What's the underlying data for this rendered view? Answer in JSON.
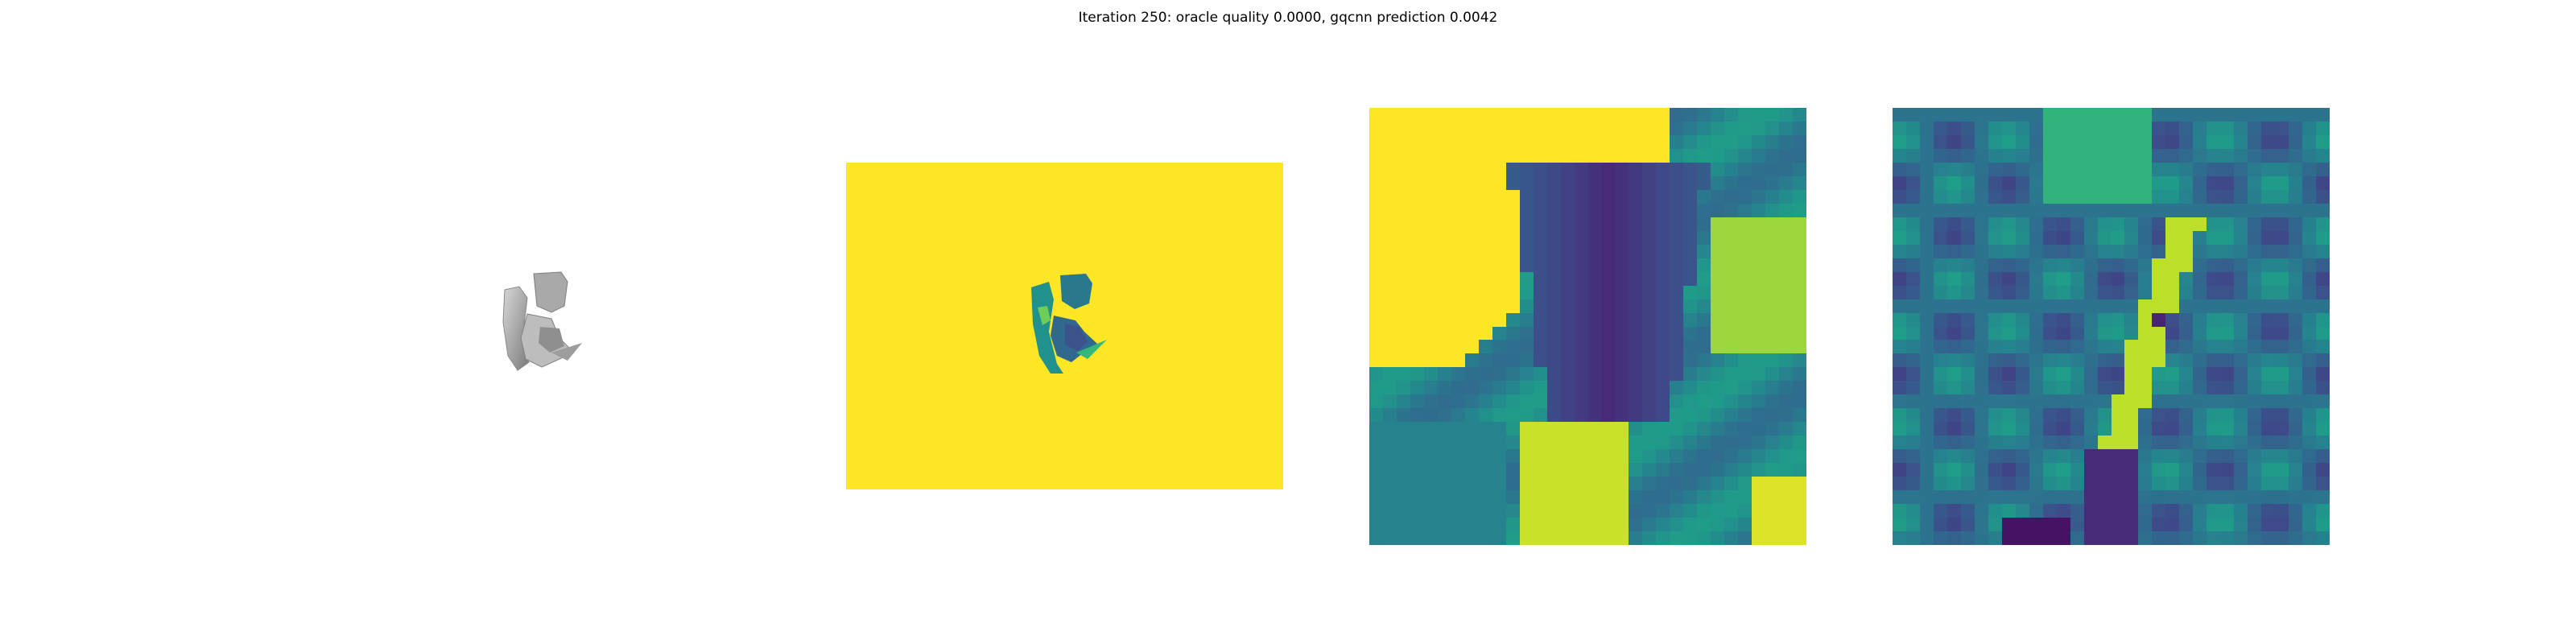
{
  "figure": {
    "title": "Iteration 250: oracle quality 0.0000, gqcnn prediction 0.0042"
  },
  "panels": [
    {
      "id": "rendered-object",
      "kind": "grayscale render"
    },
    {
      "id": "depth-image",
      "kind": "depth map",
      "colormap": "viridis",
      "background": "#fde725"
    },
    {
      "id": "depth-crop",
      "kind": "heatmap",
      "colormap": "viridis",
      "grid": [
        32,
        32
      ]
    },
    {
      "id": "gradient-crop",
      "kind": "heatmap",
      "colormap": "viridis",
      "grid": [
        32,
        32
      ]
    }
  ],
  "colors": {
    "viridis_low": "#440154",
    "viridis_mid": "#21918c",
    "viridis_high": "#fde725"
  }
}
